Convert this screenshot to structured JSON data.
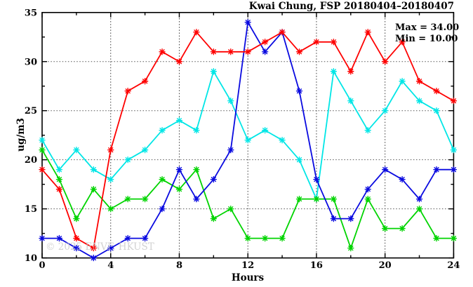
{
  "annotations": {
    "max_label": "Max = 34.00",
    "min_label": "Min = 10.00"
  },
  "watermark": "© 2025 ENVF, HKUST",
  "chart_data": {
    "type": "line",
    "title": "Kwai Chung, FSP 20180404–20180407",
    "xlabel": "Hours",
    "ylabel": "ug/m3",
    "xlim": [
      0,
      24
    ],
    "ylim": [
      10,
      35
    ],
    "x_major_ticks": [
      0,
      4,
      8,
      12,
      16,
      20,
      24
    ],
    "x_minor_tick_step": 2,
    "y_major_ticks": [
      10,
      15,
      20,
      25,
      30,
      35
    ],
    "y_minor_tick_step": 2.5,
    "grid": true,
    "legend_position": "none",
    "marker": "asterisk",
    "x": [
      0,
      1,
      2,
      3,
      4,
      5,
      6,
      7,
      8,
      9,
      10,
      11,
      12,
      13,
      14,
      15,
      16,
      17,
      18,
      19,
      20,
      21,
      22,
      23,
      24
    ],
    "series": [
      {
        "name": "cyan",
        "color": "#00e6e6",
        "values": [
          22,
          19,
          21,
          19,
          18,
          20,
          21,
          23,
          24,
          23,
          29,
          26,
          22,
          23,
          22,
          20,
          16,
          29,
          26,
          23,
          25,
          28,
          26,
          25,
          21
        ]
      },
      {
        "name": "green",
        "color": "#00d400",
        "values": [
          21,
          18,
          14,
          17,
          15,
          16,
          16,
          18,
          17,
          19,
          14,
          15,
          12,
          12,
          12,
          16,
          16,
          16,
          11,
          16,
          13,
          13,
          15,
          12,
          12
        ]
      },
      {
        "name": "blue",
        "color": "#0a0ae0",
        "values": [
          12,
          12,
          11,
          10,
          11,
          12,
          12,
          15,
          19,
          16,
          18,
          21,
          34,
          31,
          33,
          27,
          18,
          14,
          14,
          17,
          19,
          18,
          16,
          19,
          19
        ]
      },
      {
        "name": "red",
        "color": "#fe0000",
        "values": [
          19,
          17,
          12,
          11,
          21,
          27,
          28,
          31,
          30,
          33,
          31,
          31,
          31,
          32,
          33,
          31,
          32,
          32,
          29,
          33,
          30,
          32,
          28,
          27,
          26
        ]
      }
    ],
    "stats": {
      "max": 34.0,
      "min": 10.0
    }
  }
}
